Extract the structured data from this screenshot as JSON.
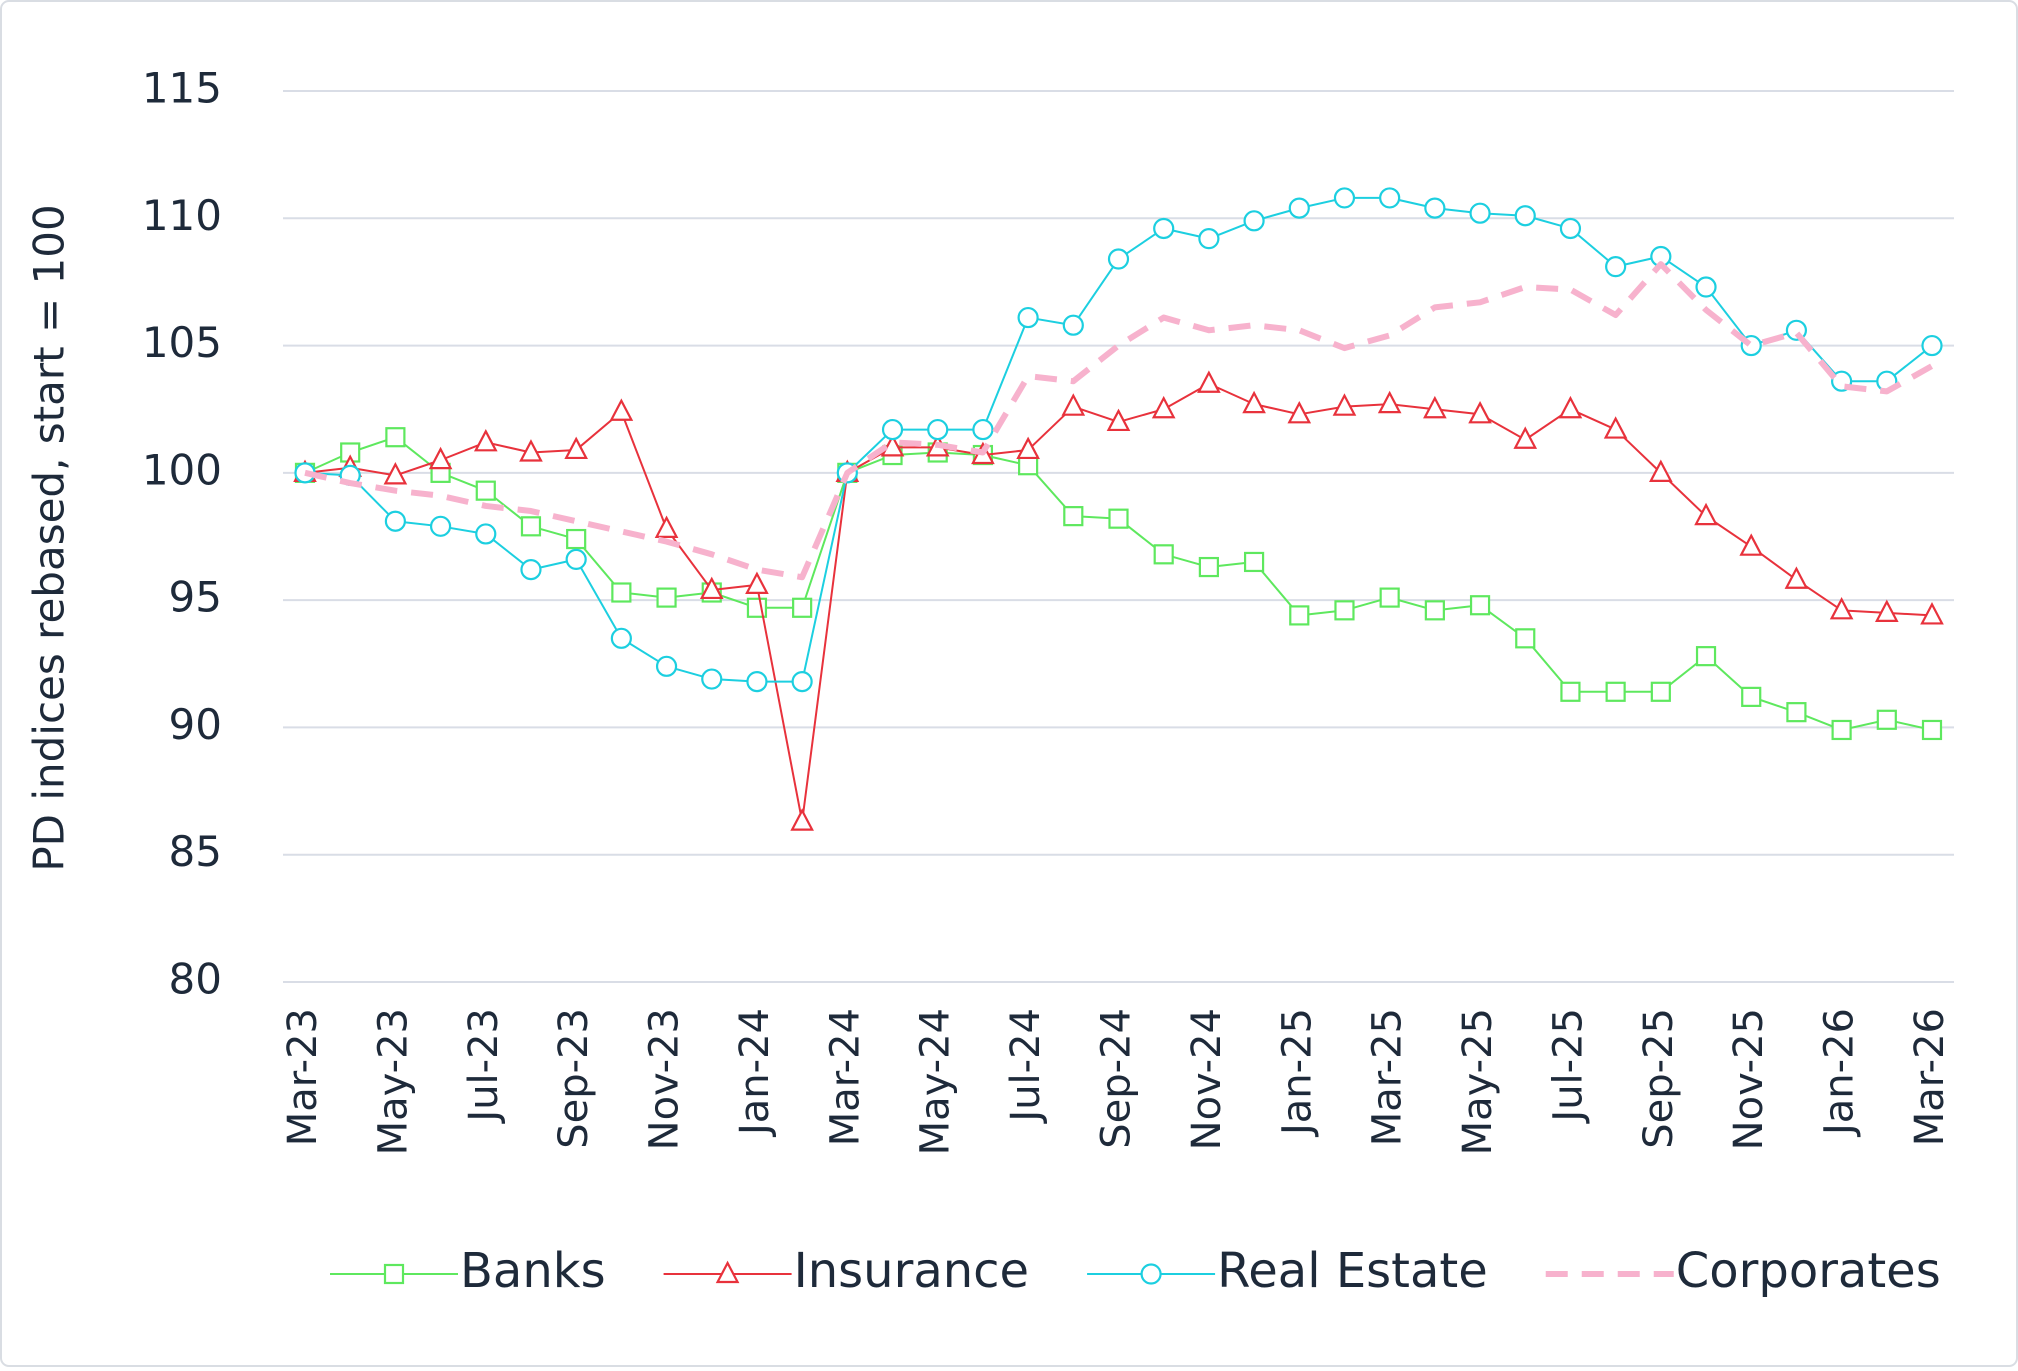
{
  "chart_data": {
    "type": "line",
    "y_label": "PD indices rebased, start = 100",
    "categories": [
      "Mar-23",
      null,
      "May-23",
      null,
      "Jul-23",
      null,
      "Sep-23",
      null,
      "Nov-23",
      null,
      "Jan-24",
      null,
      "Mar-24",
      null,
      "May-24",
      null,
      "Jul-24",
      null,
      "Sep-24",
      null,
      "Nov-24",
      null,
      "Jan-25",
      null,
      "Mar-25",
      null,
      "May-25",
      null,
      "Jul-25",
      null,
      "Sep-25",
      null,
      "Nov-25",
      null,
      "Jan-26",
      null,
      "Mar-26"
    ],
    "series": [
      {
        "name": "Banks",
        "color": "#5ee85e",
        "marker": "square",
        "line_style": "solid",
        "values": [
          100,
          100.8,
          101.4,
          100.0,
          99.3,
          97.9,
          97.4,
          95.3,
          95.1,
          95.3,
          94.7,
          94.7,
          100,
          100.7,
          100.8,
          100.7,
          100.3,
          98.3,
          98.2,
          96.8,
          96.3,
          96.5,
          94.4,
          94.6,
          95.1,
          94.6,
          94.8,
          93.5,
          91.4,
          91.4,
          91.4,
          92.8,
          91.2,
          90.6,
          89.9,
          90.3,
          89.9
        ]
      },
      {
        "name": "Insurance",
        "color": "#e8323c",
        "marker": "triangle",
        "line_style": "solid",
        "values": [
          100,
          100.2,
          99.9,
          100.5,
          101.2,
          100.8,
          100.9,
          102.4,
          97.8,
          95.4,
          95.6,
          86.3,
          100,
          101.0,
          101.0,
          100.7,
          100.9,
          102.6,
          102.0,
          102.5,
          103.5,
          102.7,
          102.3,
          102.6,
          102.7,
          102.5,
          102.3,
          101.3,
          102.5,
          101.7,
          100.0,
          98.3,
          97.1,
          95.8,
          94.6,
          94.5,
          94.4
        ]
      },
      {
        "name": "Real Estate",
        "color": "#1ccfe0",
        "marker": "circle",
        "line_style": "solid",
        "values": [
          100,
          99.9,
          98.1,
          97.9,
          97.6,
          96.2,
          96.6,
          93.5,
          92.4,
          91.9,
          91.8,
          91.8,
          100,
          101.7,
          101.7,
          101.7,
          106.1,
          105.8,
          108.4,
          109.6,
          109.2,
          109.9,
          110.4,
          110.8,
          110.8,
          110.4,
          110.2,
          110.1,
          109.6,
          108.1,
          108.5,
          107.3,
          105.0,
          105.6,
          103.6,
          103.6,
          105.0
        ]
      },
      {
        "name": "Corporates",
        "color": "#f7b2cd",
        "marker": "none",
        "line_style": "dashed",
        "values": [
          100,
          99.6,
          99.3,
          99.1,
          98.7,
          98.5,
          98.1,
          97.7,
          97.3,
          96.8,
          96.2,
          95.9,
          100,
          101.2,
          101.1,
          100.8,
          103.8,
          103.6,
          105.0,
          106.1,
          105.6,
          105.8,
          105.6,
          104.9,
          105.4,
          106.5,
          106.7,
          107.3,
          107.2,
          106.2,
          108.2,
          106.4,
          105.0,
          105.5,
          103.4,
          103.2,
          104.2
        ]
      }
    ],
    "ylim": [
      80,
      115
    ],
    "yticks": [
      80,
      85,
      90,
      95,
      100,
      105,
      110,
      115
    ],
    "grid": true,
    "legend": "bottom"
  }
}
